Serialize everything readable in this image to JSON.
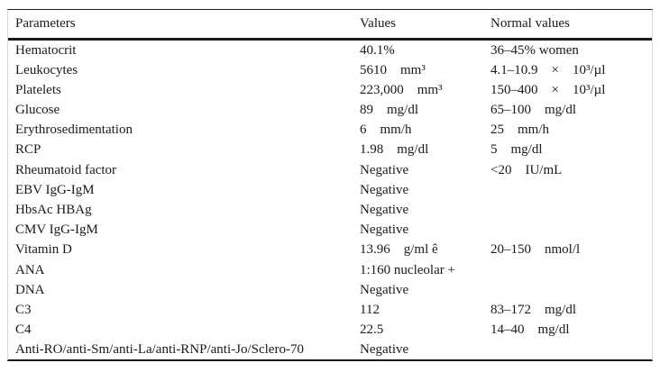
{
  "table": {
    "columns": {
      "parameters": "Parameters",
      "values": "Values",
      "normal_values": "Normal values"
    },
    "rows": [
      {
        "param": "Hematocrit",
        "value": "40.1%",
        "normal": "36–45% women"
      },
      {
        "param": "Leukocytes",
        "value": "5610    mm³",
        "normal": "4.1–10.9    ×    10³/µl"
      },
      {
        "param": "Platelets",
        "value": "223,000    mm³",
        "normal": "150–400    ×    10³/µl"
      },
      {
        "param": "Glucose",
        "value": "89    mg/dl",
        "normal": "65–100    mg/dl"
      },
      {
        "param": "Erythrosedimentation",
        "value": "6    mm/h",
        "normal": "25    mm/h"
      },
      {
        "param": "RCP",
        "value": "1.98    mg/dl",
        "normal": "5    mg/dl"
      },
      {
        "param": "Rheumatoid factor",
        "value": "Negative",
        "normal": "<20    IU/mL"
      },
      {
        "param": "EBV IgG-IgM",
        "value": "Negative",
        "normal": ""
      },
      {
        "param": "HbsAc HBAg",
        "value": "Negative",
        "normal": ""
      },
      {
        "param": "CMV IgG-IgM",
        "value": "Negative",
        "normal": ""
      },
      {
        "param": "Vitamin D",
        "value": "13.96    g/ml ê",
        "normal": "20–150    nmol/l"
      },
      {
        "param": "ANA",
        "value": "1:160 nucleolar +",
        "normal": ""
      },
      {
        "param": "DNA",
        "value": "Negative",
        "normal": ""
      },
      {
        "param": "C3",
        "value": "112",
        "normal": "83–172    mg/dl"
      },
      {
        "param": "C4",
        "value": "22.5",
        "normal": "14–40    mg/dl"
      },
      {
        "param": "Anti-RO/anti-Sm/anti-La/anti-RNP/anti-Jo/Sclero-70",
        "value": "Negative",
        "normal": ""
      }
    ]
  },
  "colors": {
    "text": "#1a1a1a",
    "rule": "#1a1a1a",
    "edge_line": "#d8d8d8",
    "background": "#ffffff"
  }
}
